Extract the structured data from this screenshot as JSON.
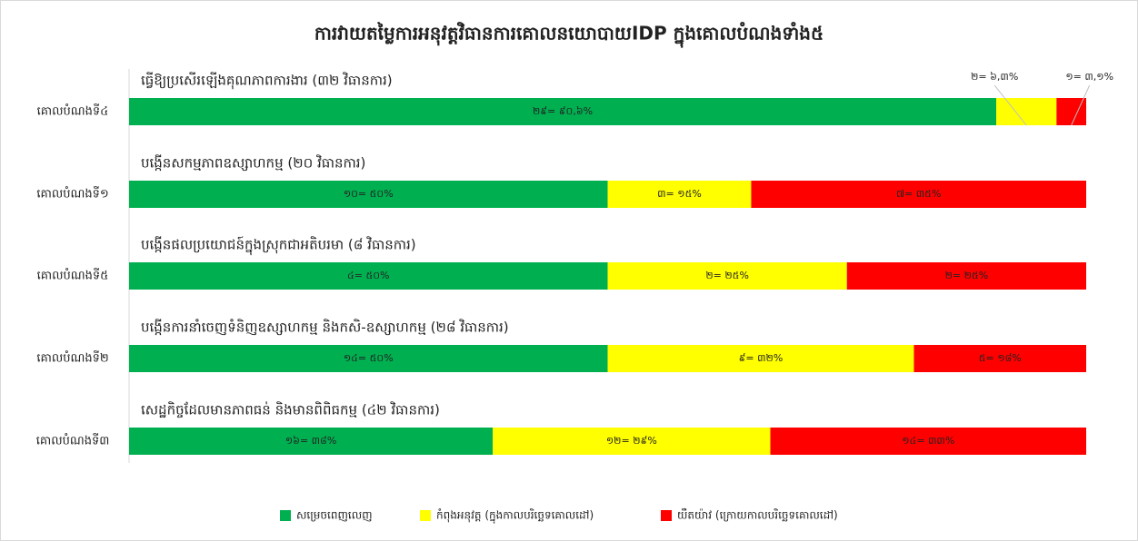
{
  "chart_data": {
    "type": "stacked_barh",
    "title": "ការវាយតម្លៃការអនុវត្តវិធានការគោលនយោបាយIDP ក្នុងគោលបំណងទាំង៥",
    "categories": [
      "គោលបំណងទី៤",
      "គោលបំណងទី១",
      "គោលបំណងទី៥",
      "គោលបំណងទី២",
      "គោលបំណងទី៣"
    ],
    "subtitles": [
      "ធ្វើឱ្យប្រសើរឡើងគុណភាពការងារ (៣២ វិធានការ)",
      "បង្កើនសកម្មភាពឧស្សាហកម្ម (២០ វិធានការ)",
      "បង្កើនផលប្រយោជន៍ក្នុងស្រុកជាអតិបរមា (៨ វិធានការ)",
      "បង្កើនការនាំចេញទំនិញឧស្សាហកម្ម និងកសិ-ឧស្សាហកម្ម (២៨ វិធានការ)",
      "សេដ្ឋកិច្ចដែលមានភាពធន់ និងមានពិពិធកម្ម (៤២ វិធានការ)"
    ],
    "xlim": [
      0,
      100
    ],
    "series": [
      {
        "name": "សម្រេចពេញលេញ",
        "color": "#00b050",
        "values": [
          90.6,
          50,
          50,
          50,
          38
        ],
        "value_labels": [
          "២៩= ៩០,៦%",
          "១០= ៥០%",
          "៤= ៥០%",
          "១៤= ៥០%",
          "១៦= ៣៨%"
        ]
      },
      {
        "name": "កំពុងអនុវត្ត (ក្នុងកាលបរិច្ឆេទគោលដៅ)",
        "color": "#ffff00",
        "values": [
          6.3,
          15,
          25,
          32,
          29
        ],
        "value_labels": [
          "២= ៦,៣%",
          "៣= ១៥%",
          "២= ២៥%",
          "៩= ៣២%",
          "១២= ២៩%"
        ]
      },
      {
        "name": "យឺតយ៉ាវ (ក្រោយកាលបរិច្ឆេទគោលដៅ)",
        "color": "#ff0000",
        "values": [
          3.1,
          35,
          25,
          18,
          33
        ],
        "value_labels": [
          "១= ៣,១%",
          "៧= ៣៥%",
          "២= ២៥%",
          "៥= ១៨%",
          "១៤= ៣៣%"
        ]
      }
    ]
  }
}
